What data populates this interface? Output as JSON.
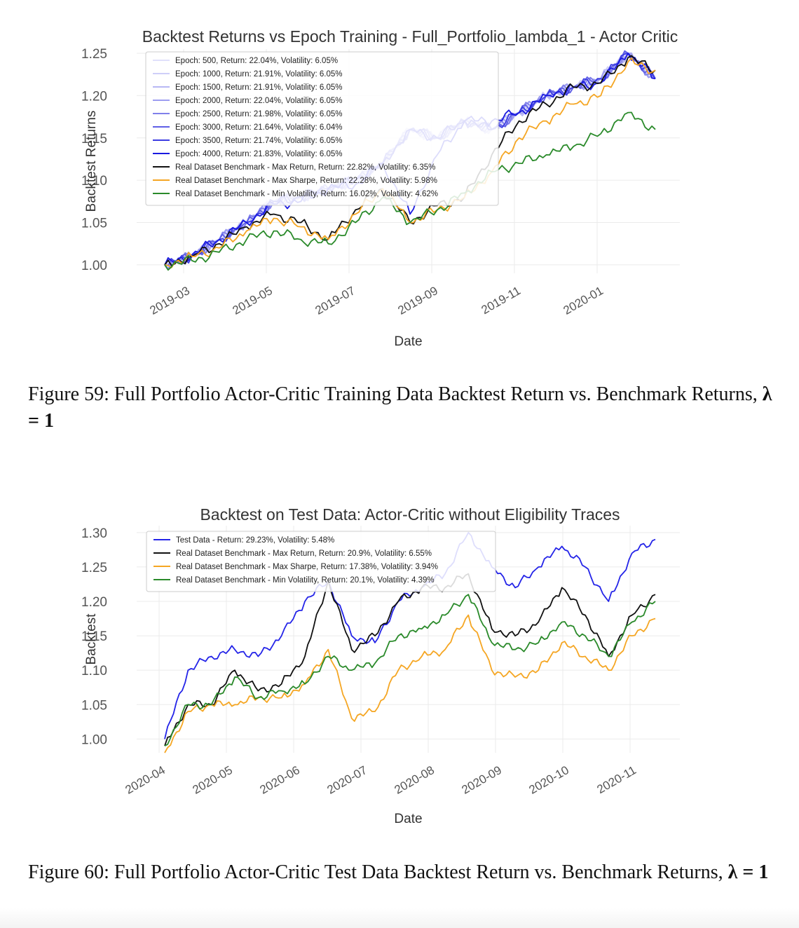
{
  "figures": [
    {
      "caption_prefix": "Figure 59:",
      "caption_text": "Full Portfolio Actor-Critic Training Data Backtest Return vs. Benchmark Returns,",
      "caption_math": "λ = 1"
    },
    {
      "caption_prefix": "Figure 60:",
      "caption_text": "Full Portfolio Actor-Critic Test Data Backtest Return vs. Benchmark Returns,",
      "caption_math": "λ = 1"
    }
  ],
  "chart_data": [
    {
      "type": "line",
      "title": "Backtest Returns vs Epoch Training - Full_Portfolio_lambda_1 - Actor Critic",
      "xlabel": "Date",
      "ylabel": "Backtest Returns",
      "x_tick_labels": [
        "2019-03",
        "2019-05",
        "2019-07",
        "2019-09",
        "2019-11",
        "2020-01"
      ],
      "y_tick_labels": [
        "1.00",
        "1.05",
        "1.10",
        "1.15",
        "1.20",
        "1.25"
      ],
      "ylim": [
        0.99,
        1.255
      ],
      "grid": true,
      "legend_position": "top-left",
      "series": [
        {
          "name": "Epoch: 500, Return: 22.04%, Volatility: 6.05%",
          "color": "#e0e0fb",
          "values": [
            1.0,
            1.01,
            1.03,
            1.05,
            1.075,
            1.08,
            1.09,
            1.1,
            1.12,
            1.16,
            1.15,
            1.17,
            1.16,
            1.18,
            1.2,
            1.21,
            1.22,
            1.25,
            1.22
          ]
        },
        {
          "name": "Epoch: 1000, Return: 21.91%, Volatility: 6.05%",
          "color": "#cfcff8",
          "values": [
            1.0,
            1.01,
            1.03,
            1.05,
            1.075,
            1.08,
            1.09,
            1.1,
            1.12,
            1.16,
            1.15,
            1.17,
            1.16,
            1.18,
            1.2,
            1.21,
            1.22,
            1.25,
            1.22
          ]
        },
        {
          "name": "Epoch: 1500, Return: 21.91%, Volatility: 6.05%",
          "color": "#b8b8f4",
          "values": [
            1.0,
            1.01,
            1.03,
            1.05,
            1.075,
            1.08,
            1.09,
            1.1,
            1.12,
            1.16,
            1.15,
            1.17,
            1.16,
            1.18,
            1.2,
            1.21,
            1.22,
            1.25,
            1.22
          ]
        },
        {
          "name": "Epoch: 2000, Return: 22.04%, Volatility: 6.05%",
          "color": "#9d9df0",
          "values": [
            1.0,
            1.01,
            1.03,
            1.05,
            1.075,
            1.08,
            1.09,
            1.1,
            1.12,
            1.16,
            1.15,
            1.17,
            1.16,
            1.18,
            1.2,
            1.21,
            1.22,
            1.25,
            1.22
          ]
        },
        {
          "name": "Epoch: 2500, Return: 21.98%, Volatility: 6.05%",
          "color": "#8080ea",
          "values": [
            1.0,
            1.01,
            1.03,
            1.05,
            1.075,
            1.08,
            1.09,
            1.1,
            1.12,
            1.16,
            1.15,
            1.17,
            1.16,
            1.18,
            1.2,
            1.21,
            1.22,
            1.25,
            1.22
          ]
        },
        {
          "name": "Epoch: 3000, Return: 21.64%, Volatility: 6.04%",
          "color": "#5f5fe6",
          "values": [
            1.0,
            1.01,
            1.03,
            1.05,
            1.075,
            1.08,
            1.09,
            1.1,
            1.12,
            1.16,
            1.15,
            1.17,
            1.16,
            1.18,
            1.2,
            1.21,
            1.22,
            1.25,
            1.22
          ]
        },
        {
          "name": "Epoch: 3500, Return: 21.74%, Volatility: 6.05%",
          "color": "#3c3ce2",
          "values": [
            1.0,
            1.01,
            1.03,
            1.05,
            1.075,
            1.08,
            1.09,
            1.1,
            1.12,
            1.16,
            1.15,
            1.17,
            1.16,
            1.18,
            1.2,
            1.21,
            1.22,
            1.25,
            1.22
          ]
        },
        {
          "name": "Epoch: 4000, Return: 21.83%, Volatility: 6.05%",
          "color": "#1a1ae0",
          "values": [
            1.0,
            1.012,
            1.03,
            1.05,
            1.072,
            1.075,
            1.09,
            1.095,
            1.12,
            1.06,
            1.13,
            1.17,
            1.17,
            1.18,
            1.2,
            1.21,
            1.215,
            1.25,
            1.22
          ]
        },
        {
          "name": "Real Dataset Benchmark - Max Return, Return: 22.82%, Volatility: 6.35%",
          "color": "#111111",
          "values": [
            1.0,
            1.01,
            1.025,
            1.045,
            1.06,
            1.05,
            1.03,
            1.065,
            1.09,
            1.05,
            1.07,
            1.08,
            1.13,
            1.17,
            1.19,
            1.21,
            1.215,
            1.245,
            1.23
          ]
        },
        {
          "name": "Real Dataset Benchmark - Max Sharpe, Return: 22.28%, Volatility: 5.98%",
          "color": "#f5a623",
          "values": [
            1.0,
            1.01,
            1.02,
            1.04,
            1.055,
            1.045,
            1.03,
            1.06,
            1.09,
            1.05,
            1.065,
            1.08,
            1.11,
            1.15,
            1.17,
            1.19,
            1.2,
            1.24,
            1.23
          ]
        },
        {
          "name": "Real Dataset Benchmark - Min Volatility, Return: 16.02%, Volatility: 4.62%",
          "color": "#2a8a2a",
          "values": [
            1.0,
            1.005,
            1.015,
            1.03,
            1.04,
            1.03,
            1.025,
            1.05,
            1.08,
            1.05,
            1.065,
            1.085,
            1.11,
            1.12,
            1.13,
            1.14,
            1.155,
            1.18,
            1.16
          ]
        }
      ]
    },
    {
      "type": "line",
      "title": "Backtest on Test Data: Actor-Critic without Eligibility Traces",
      "xlabel": "Date",
      "ylabel": "Backtest",
      "x_tick_labels": [
        "2020-04",
        "2020-05",
        "2020-06",
        "2020-07",
        "2020-08",
        "2020-09",
        "2020-10",
        "2020-11"
      ],
      "y_tick_labels": [
        "1.00",
        "1.05",
        "1.10",
        "1.15",
        "1.20",
        "1.25",
        "1.30"
      ],
      "ylim": [
        0.98,
        1.31
      ],
      "grid": true,
      "legend_position": "top-left",
      "series": [
        {
          "name": "Test Data - Return: 29.23%, Volatility: 5.48%",
          "color": "#2424e8",
          "values": [
            1.0,
            1.1,
            1.12,
            1.13,
            1.12,
            1.15,
            1.2,
            1.23,
            1.15,
            1.14,
            1.2,
            1.22,
            1.24,
            1.3,
            1.25,
            1.22,
            1.25,
            1.28,
            1.25,
            1.2,
            1.27,
            1.29
          ]
        },
        {
          "name": "Real Dataset Benchmark - Max Return, Return: 20.9%, Volatility: 6.55%",
          "color": "#111111",
          "values": [
            0.99,
            1.05,
            1.05,
            1.1,
            1.07,
            1.08,
            1.12,
            1.23,
            1.13,
            1.15,
            1.2,
            1.22,
            1.22,
            1.24,
            1.16,
            1.15,
            1.17,
            1.22,
            1.18,
            1.12,
            1.18,
            1.21
          ]
        },
        {
          "name": "Real Dataset Benchmark - Max Sharpe, Return: 17.38%, Volatility: 3.94%",
          "color": "#f5a623",
          "values": [
            0.98,
            1.04,
            1.05,
            1.05,
            1.06,
            1.06,
            1.08,
            1.13,
            1.03,
            1.04,
            1.1,
            1.12,
            1.13,
            1.18,
            1.1,
            1.09,
            1.1,
            1.14,
            1.12,
            1.1,
            1.15,
            1.175
          ]
        },
        {
          "name": "Real Dataset Benchmark - Min Volatility, Return: 20.1%, Volatility: 4.39%",
          "color": "#2a8a2a",
          "values": [
            0.99,
            1.05,
            1.05,
            1.09,
            1.06,
            1.07,
            1.08,
            1.12,
            1.1,
            1.11,
            1.15,
            1.16,
            1.18,
            1.21,
            1.14,
            1.13,
            1.14,
            1.17,
            1.15,
            1.12,
            1.17,
            1.2
          ]
        }
      ]
    }
  ]
}
